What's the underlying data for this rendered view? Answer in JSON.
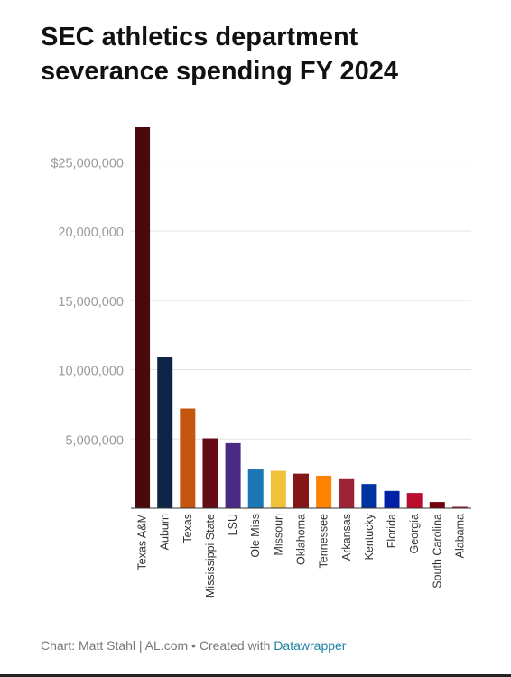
{
  "title": "SEC athletics department severance spending FY 2024",
  "footer": {
    "credit": "Chart: Matt Stahl | AL.com • Created with ",
    "tool": "Datawrapper"
  },
  "chart_data": {
    "type": "bar",
    "title": "SEC athletics department severance spending FY 2024",
    "xlabel": "",
    "ylabel": "",
    "ylim": [
      0,
      27500000
    ],
    "grid": true,
    "y_ticks": [
      {
        "value": 5000000,
        "label": "5,000,000"
      },
      {
        "value": 10000000,
        "label": "10,000,000"
      },
      {
        "value": 15000000,
        "label": "15,000,000"
      },
      {
        "value": 20000000,
        "label": "20,000,000"
      },
      {
        "value": 25000000,
        "label": "$25,000,000"
      }
    ],
    "categories": [
      "Texas A&M",
      "Auburn",
      "Texas",
      "Mississippi State",
      "LSU",
      "Ole Miss",
      "Missouri",
      "Oklahoma",
      "Tennessee",
      "Arkansas",
      "Kentucky",
      "Florida",
      "Georgia",
      "South Carolina",
      "Alabama"
    ],
    "values": [
      27500000,
      10900000,
      7200000,
      5050000,
      4700000,
      2800000,
      2700000,
      2500000,
      2350000,
      2100000,
      1750000,
      1250000,
      1100000,
      450000,
      100000
    ],
    "colors": [
      "#4a0a0a",
      "#0e2548",
      "#c4570d",
      "#640b15",
      "#4b2a85",
      "#1c77b4",
      "#f0c13a",
      "#841617",
      "#ff8200",
      "#9d2235",
      "#0033a0",
      "#0021a5",
      "#ba0c2f",
      "#73000a",
      "#9e1b32"
    ]
  }
}
